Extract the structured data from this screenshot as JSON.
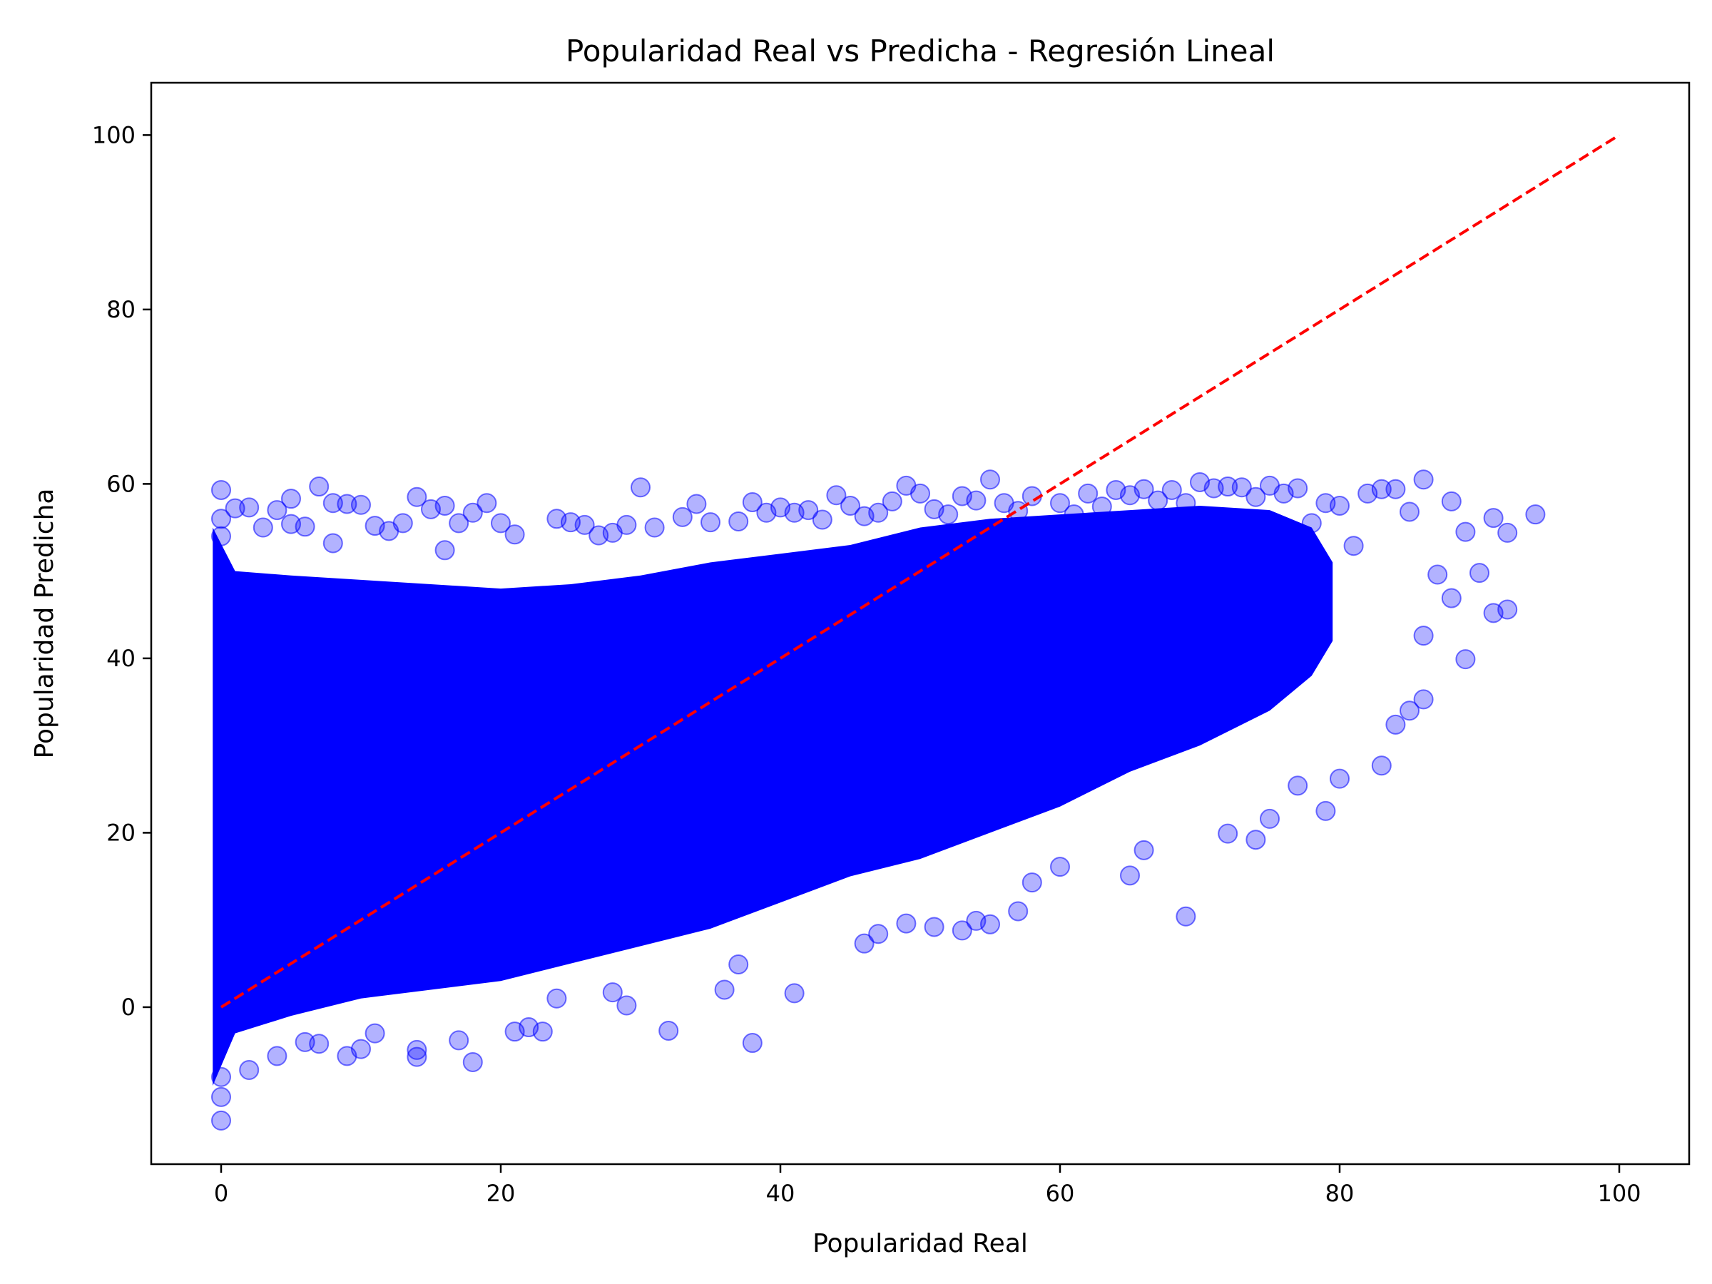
{
  "chart_data": {
    "type": "scatter",
    "title": "Popularidad Real vs Predicha - Regresión Lineal",
    "xlabel": "Popularidad Real",
    "ylabel": "Popularidad Predicha",
    "xlim": [
      -5,
      105
    ],
    "ylim": [
      -18,
      106
    ],
    "xticks": [
      0,
      20,
      40,
      60,
      80,
      100
    ],
    "yticks": [
      0,
      20,
      40,
      60,
      80,
      100
    ],
    "grid": false,
    "legend": "none",
    "colors": {
      "points": "#0000ff",
      "reference_line": "#ff0000",
      "frame": "#000000"
    },
    "series": [
      {
        "name": "",
        "kind": "scatter",
        "marker_alpha": 0.3,
        "points": [
          [
            0,
            59.3
          ],
          [
            0,
            -13
          ],
          [
            0,
            -10.3
          ],
          [
            0,
            56
          ],
          [
            0,
            54
          ],
          [
            0,
            -8
          ],
          [
            1,
            57.2
          ],
          [
            2,
            57.3
          ],
          [
            2,
            -7.2
          ],
          [
            3,
            55
          ],
          [
            4,
            -5.6
          ],
          [
            4,
            57
          ],
          [
            5,
            58.3
          ],
          [
            5,
            55.4
          ],
          [
            6,
            55.1
          ],
          [
            6,
            -4
          ],
          [
            7,
            59.7
          ],
          [
            7,
            -4.2
          ],
          [
            8,
            57.8
          ],
          [
            8,
            53.2
          ],
          [
            9,
            57.7
          ],
          [
            9,
            -5.6
          ],
          [
            10,
            57.6
          ],
          [
            10,
            -4.8
          ],
          [
            11,
            55.2
          ],
          [
            11,
            -3
          ],
          [
            12,
            54.6
          ],
          [
            13,
            55.5
          ],
          [
            14,
            58.5
          ],
          [
            14,
            -4.9
          ],
          [
            14,
            -5.7
          ],
          [
            15,
            57.1
          ],
          [
            16,
            57.5
          ],
          [
            16,
            52.4
          ],
          [
            17,
            55.5
          ],
          [
            17,
            -3.8
          ],
          [
            18,
            56.7
          ],
          [
            18,
            -6.3
          ],
          [
            19,
            57.8
          ],
          [
            20,
            55.5
          ],
          [
            21,
            54.2
          ],
          [
            21,
            -2.8
          ],
          [
            22,
            -2.3
          ],
          [
            23,
            -2.8
          ],
          [
            24,
            56
          ],
          [
            24,
            1
          ],
          [
            25,
            55.6
          ],
          [
            26,
            55.3
          ],
          [
            27,
            54.1
          ],
          [
            28,
            54.4
          ],
          [
            28,
            1.7
          ],
          [
            29,
            55.3
          ],
          [
            29,
            0.2
          ],
          [
            30,
            59.6
          ],
          [
            31,
            55
          ],
          [
            32,
            -2.7
          ],
          [
            33,
            56.2
          ],
          [
            34,
            57.7
          ],
          [
            35,
            55.6
          ],
          [
            36,
            2
          ],
          [
            37,
            55.7
          ],
          [
            37,
            4.9
          ],
          [
            38,
            57.9
          ],
          [
            38,
            -4.1
          ],
          [
            39,
            56.7
          ],
          [
            40,
            57.3
          ],
          [
            41,
            56.7
          ],
          [
            41,
            1.6
          ],
          [
            42,
            57
          ],
          [
            43,
            55.9
          ],
          [
            44,
            58.7
          ],
          [
            45,
            57.5
          ],
          [
            46,
            56.3
          ],
          [
            46,
            7.3
          ],
          [
            47,
            56.7
          ],
          [
            47,
            8.4
          ],
          [
            48,
            58
          ],
          [
            49,
            59.8
          ],
          [
            49,
            9.6
          ],
          [
            50,
            58.9
          ],
          [
            51,
            57.1
          ],
          [
            51,
            9.2
          ],
          [
            52,
            56.5
          ],
          [
            53,
            58.6
          ],
          [
            53,
            8.8
          ],
          [
            54,
            58.1
          ],
          [
            54,
            9.9
          ],
          [
            55,
            60.5
          ],
          [
            55,
            9.5
          ],
          [
            56,
            57.8
          ],
          [
            57,
            56.9
          ],
          [
            57,
            11
          ],
          [
            58,
            58.6
          ],
          [
            58,
            14.3
          ],
          [
            60,
            57.8
          ],
          [
            60,
            16.1
          ],
          [
            61,
            56.5
          ],
          [
            62,
            58.9
          ],
          [
            63,
            57.4
          ],
          [
            64,
            59.3
          ],
          [
            65,
            58.7
          ],
          [
            65,
            15.1
          ],
          [
            66,
            59.4
          ],
          [
            66,
            18
          ],
          [
            67,
            58.1
          ],
          [
            68,
            59.3
          ],
          [
            69,
            57.8
          ],
          [
            69,
            10.4
          ],
          [
            70,
            60.2
          ],
          [
            71,
            59.5
          ],
          [
            72,
            59.7
          ],
          [
            72,
            19.9
          ],
          [
            73,
            59.6
          ],
          [
            74,
            58.5
          ],
          [
            74,
            19.2
          ],
          [
            75,
            59.8
          ],
          [
            75,
            21.6
          ],
          [
            76,
            58.9
          ],
          [
            77,
            59.5
          ],
          [
            77,
            25.4
          ],
          [
            78,
            55.5
          ],
          [
            79,
            57.8
          ],
          [
            79,
            22.5
          ],
          [
            80,
            57.5
          ],
          [
            80,
            26.2
          ],
          [
            81,
            52.9
          ],
          [
            82,
            58.9
          ],
          [
            83,
            59.4
          ],
          [
            83,
            27.7
          ],
          [
            84,
            59.4
          ],
          [
            84,
            32.4
          ],
          [
            85,
            56.8
          ],
          [
            85,
            34
          ],
          [
            86,
            60.5
          ],
          [
            86,
            35.3
          ],
          [
            86,
            42.6
          ],
          [
            87,
            49.6
          ],
          [
            88,
            58
          ],
          [
            88,
            46.9
          ],
          [
            89,
            54.5
          ],
          [
            89,
            39.9
          ],
          [
            90,
            49.8
          ],
          [
            91,
            56.1
          ],
          [
            91,
            45.2
          ],
          [
            92,
            54.4
          ],
          [
            92,
            45.6
          ],
          [
            94,
            56.5
          ]
        ]
      },
      {
        "name": "",
        "kind": "line",
        "style": "dashed",
        "points": [
          [
            0,
            0
          ],
          [
            100,
            100
          ]
        ]
      }
    ]
  }
}
